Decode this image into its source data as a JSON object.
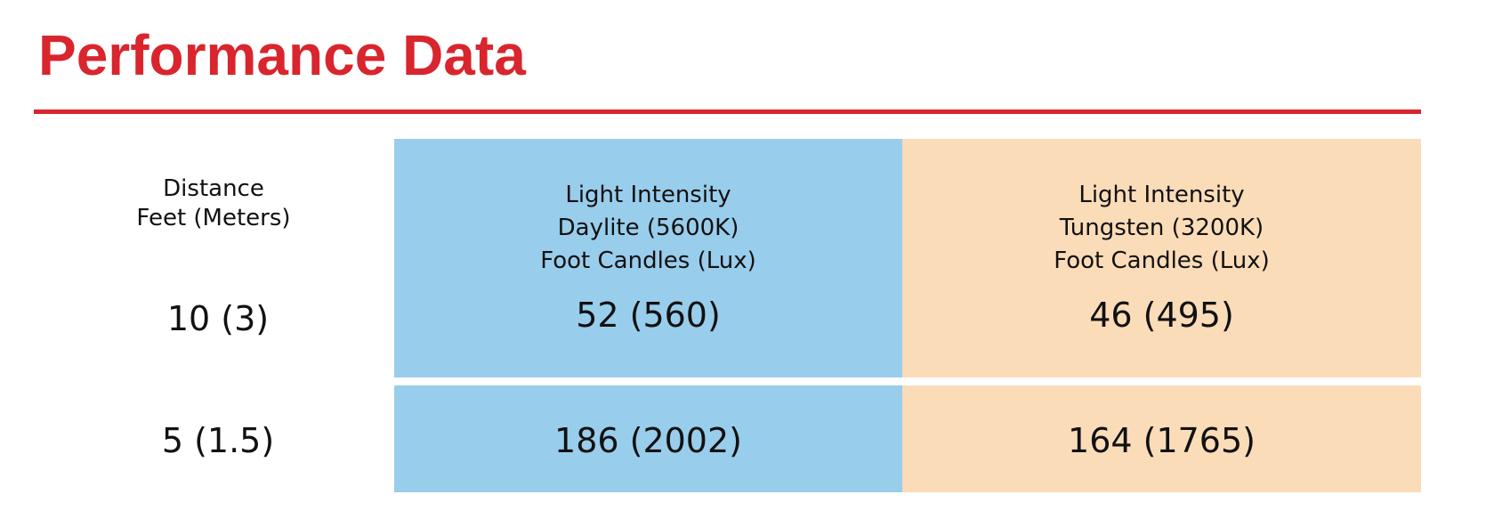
{
  "title": "Performance Data",
  "colors": {
    "accent": "#d9252d",
    "daylight_column": "#99cdec",
    "tungsten_column": "#fbdcb9"
  },
  "headers": {
    "distance": [
      "Distance",
      "Feet (Meters)"
    ],
    "daylight": [
      "Light Intensity",
      "Daylite (5600K)",
      "Foot Candles (Lux)"
    ],
    "tungsten": [
      "Light Intensity",
      "Tungsten (3200K)",
      "Foot Candles (Lux)"
    ]
  },
  "rows": [
    {
      "distance": "10 (3)",
      "daylight": "52 (560)",
      "tungsten": "46 (495)"
    },
    {
      "distance": "5 (1.5)",
      "daylight": "186 (2002)",
      "tungsten": "164 (1765)"
    }
  ]
}
